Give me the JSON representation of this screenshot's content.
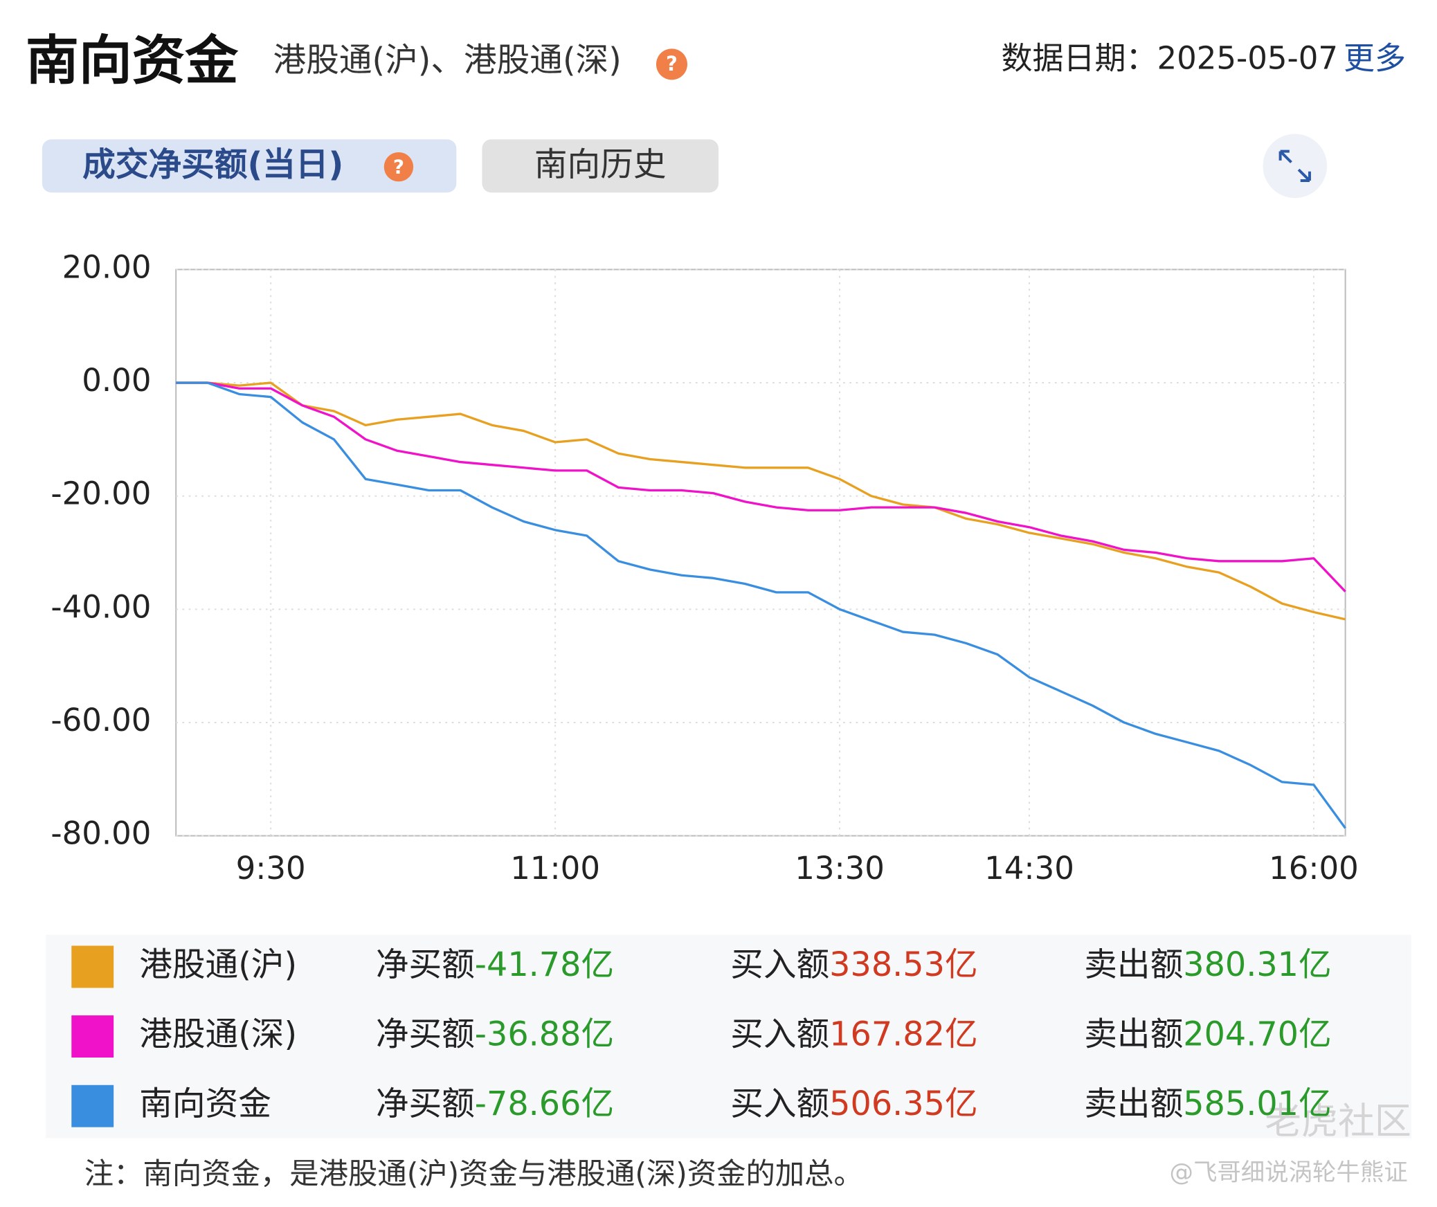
{
  "header": {
    "title": "南向资金",
    "subtitle": "港股通(沪)、港股通(深)",
    "help_icon": "?",
    "date_label": "数据日期：2025-05-07",
    "more_link": "更多"
  },
  "tabs": [
    "成交净买额(当日)",
    "南向历史"
  ],
  "chart_data": {
    "type": "line",
    "categories": [
      null,
      null,
      null,
      "9:30",
      null,
      null,
      null,
      null,
      null,
      null,
      null,
      null,
      "11:00",
      null,
      null,
      null,
      null,
      null,
      null,
      null,
      null,
      "13:30",
      null,
      null,
      null,
      null,
      null,
      "14:30",
      null,
      null,
      null,
      null,
      null,
      null,
      null,
      null,
      "16:00",
      null
    ],
    "series": [
      {
        "name": "港股通(沪)",
        "color": "#e8a020",
        "values": [
          0,
          0,
          -0.5,
          0,
          -4,
          -5,
          -7.5,
          -6.5,
          -6,
          -5.5,
          -7.5,
          -8.5,
          -10.5,
          -10,
          -12.5,
          -13.5,
          -14,
          -14.5,
          -15,
          -15,
          -15,
          -17,
          -20,
          -21.5,
          -22,
          -24,
          -25,
          -26.5,
          -27.5,
          -28.5,
          -30,
          -31,
          -32.5,
          -33.5,
          -36,
          -39,
          -40.5,
          -41.78
        ]
      },
      {
        "name": "港股通(深)",
        "color": "#f012c8",
        "values": [
          0,
          0,
          -1,
          -1,
          -4,
          -6,
          -10,
          -12,
          -13,
          -14,
          -14.5,
          -15,
          -15.5,
          -15.5,
          -18.5,
          -19,
          -19,
          -19.5,
          -21,
          -22,
          -22.5,
          -22.5,
          -22,
          -22,
          -22,
          -23,
          -24.5,
          -25.5,
          -27,
          -28,
          -29.5,
          -30,
          -31,
          -31.5,
          -31.5,
          -31.5,
          -31,
          -36.88
        ]
      },
      {
        "name": "南向资金",
        "color": "#3a8ee0",
        "values": [
          0,
          0,
          -2,
          -2.5,
          -7,
          -10,
          -17,
          -18,
          -19,
          -19,
          -22,
          -24.5,
          -26,
          -27,
          -31.5,
          -33,
          -34,
          -34.5,
          -35.5,
          -37,
          -37,
          -40,
          -42,
          -44,
          -44.5,
          -46,
          -48,
          -52,
          -54.5,
          -57,
          -60,
          -62,
          -63.5,
          -65,
          -67.5,
          -70.5,
          -71,
          -78.66
        ]
      }
    ],
    "ylim": [
      -80,
      20
    ],
    "yticks": [
      {
        "value": 20,
        "label": "20.00"
      },
      {
        "value": 0,
        "label": "0.00"
      },
      {
        "value": -20,
        "label": "-20.00"
      },
      {
        "value": -40,
        "label": "-40.00"
      },
      {
        "value": -60,
        "label": "-60.00"
      },
      {
        "value": -80,
        "label": "-80.00"
      }
    ],
    "grid": true
  },
  "summary": {
    "labels": [
      "净买额",
      "买入额",
      "卖出额"
    ],
    "rows": [
      [
        "-41.78亿",
        "338.53亿",
        "380.31亿"
      ],
      [
        "-36.88亿",
        "167.82亿",
        "204.70亿"
      ],
      [
        "-78.66亿",
        "506.35亿",
        "585.01亿"
      ]
    ]
  },
  "note": "注：南向资金，是港股通(沪)资金与港股通(深)资金的加总。",
  "watermark": [
    "老虎社区",
    "@飞哥细说涡轮牛熊证"
  ]
}
